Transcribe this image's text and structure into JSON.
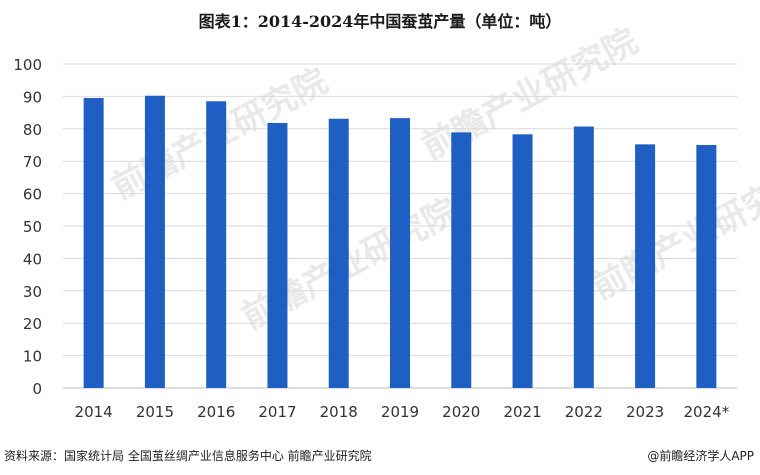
{
  "chart_data": {
    "type": "bar",
    "title": "图表1：2014-2024年中国蚕茧产量（单位：吨）",
    "categories": [
      "2014",
      "2015",
      "2016",
      "2017",
      "2018",
      "2019",
      "2020",
      "2021",
      "2022",
      "2023",
      "2024*"
    ],
    "values": [
      89.5,
      90.2,
      88.5,
      81.8,
      83.1,
      83.3,
      78.9,
      78.3,
      80.7,
      75.2,
      75.0
    ],
    "ylim": [
      0,
      100
    ],
    "yticks": [
      0,
      10,
      20,
      30,
      40,
      50,
      60,
      70,
      80,
      90,
      100
    ],
    "grid": true,
    "legend": "none",
    "bar_color": "#1f5fc4"
  },
  "footer": {
    "source": "资料来源：国家统计局 全国茧丝绸产业信息服务中心 前瞻产业研究院",
    "credit": "@前瞻经济学人APP"
  },
  "watermark": {
    "text": "前瞻产业研究院",
    "icon": "qianzhan-logo-icon"
  }
}
